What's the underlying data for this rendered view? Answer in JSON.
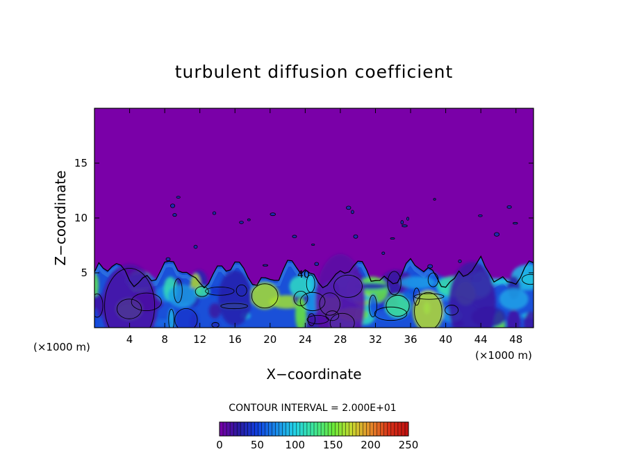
{
  "chart_data": {
    "type": "heatmap",
    "title": "turbulent diffusion coefficient",
    "xlabel": "X−coordinate",
    "ylabel": "Z−coordinate",
    "x_unit_left": "(×1000 m)",
    "x_unit_right": "(×1000 m)",
    "x_ticks": [
      4,
      8,
      12,
      16,
      20,
      24,
      28,
      32,
      36,
      40,
      44,
      48
    ],
    "y_ticks": [
      5,
      10,
      15
    ],
    "xlim": [
      0,
      50
    ],
    "ylim": [
      0,
      20
    ],
    "background_value": 0,
    "boundary_layer_top_km": 5.5,
    "contour_interval_text": "CONTOUR INTERVAL = 2.000E+01",
    "contour_label": "40",
    "colorbar": {
      "min": 0,
      "max": 250,
      "tick_labels": [
        "0",
        "50",
        "100",
        "150",
        "200",
        "250"
      ],
      "tick_values": [
        0,
        50,
        100,
        150,
        200,
        250
      ],
      "colors": [
        "#7a00a8",
        "#2a1aa0",
        "#1040e0",
        "#1a8ae8",
        "#22d2e6",
        "#3ee89a",
        "#6aea3a",
        "#c8d830",
        "#e68a2a",
        "#d83018",
        "#c01010"
      ]
    },
    "colors": {
      "background": "#7a00a8",
      "frame": "#000000"
    }
  }
}
